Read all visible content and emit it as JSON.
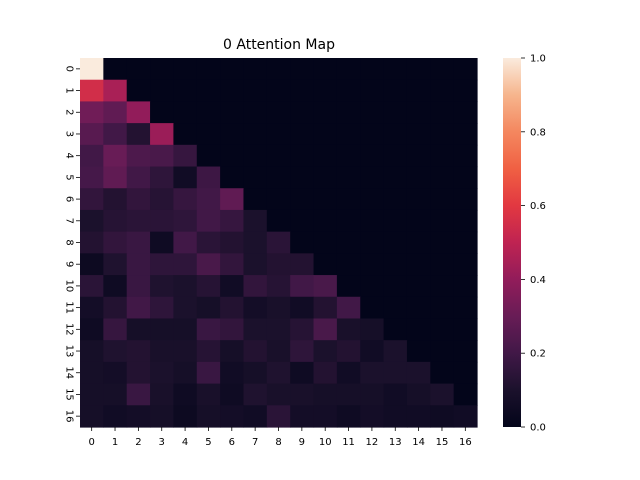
{
  "chart_data": {
    "type": "heatmap",
    "title": "0 Attention Map",
    "xlabel": "",
    "ylabel": "",
    "x_tick_labels": [
      "0",
      "1",
      "2",
      "3",
      "4",
      "5",
      "6",
      "7",
      "8",
      "9",
      "10",
      "11",
      "12",
      "13",
      "14",
      "15",
      "16"
    ],
    "y_tick_labels": [
      "0",
      "1",
      "2",
      "3",
      "4",
      "5",
      "6",
      "7",
      "8",
      "9",
      "10",
      "11",
      "12",
      "13",
      "14",
      "15",
      "16"
    ],
    "colorbar": {
      "min": 0.0,
      "max": 1.0,
      "ticks": [
        "0.0",
        "0.2",
        "0.4",
        "0.6",
        "0.8",
        "1.0"
      ]
    },
    "colormap": "rocket",
    "values": [
      [
        1.0,
        0,
        0,
        0,
        0,
        0,
        0,
        0,
        0,
        0,
        0,
        0,
        0,
        0,
        0,
        0,
        0
      ],
      [
        0.55,
        0.45,
        0,
        0,
        0,
        0,
        0,
        0,
        0,
        0,
        0,
        0,
        0,
        0,
        0,
        0,
        0
      ],
      [
        0.32,
        0.28,
        0.4,
        0,
        0,
        0,
        0,
        0,
        0,
        0,
        0,
        0,
        0,
        0,
        0,
        0,
        0
      ],
      [
        0.26,
        0.2,
        0.12,
        0.42,
        0,
        0,
        0,
        0,
        0,
        0,
        0,
        0,
        0,
        0,
        0,
        0,
        0
      ],
      [
        0.2,
        0.3,
        0.23,
        0.22,
        0.17,
        0,
        0,
        0,
        0,
        0,
        0,
        0,
        0,
        0,
        0,
        0,
        0
      ],
      [
        0.21,
        0.28,
        0.2,
        0.15,
        0.06,
        0.19,
        0,
        0,
        0,
        0,
        0,
        0,
        0,
        0,
        0,
        0,
        0
      ],
      [
        0.16,
        0.12,
        0.16,
        0.13,
        0.17,
        0.2,
        0.28,
        0,
        0,
        0,
        0,
        0,
        0,
        0,
        0,
        0,
        0
      ],
      [
        0.1,
        0.13,
        0.14,
        0.14,
        0.15,
        0.2,
        0.17,
        0.1,
        0,
        0,
        0,
        0,
        0,
        0,
        0,
        0,
        0
      ],
      [
        0.12,
        0.16,
        0.18,
        0.05,
        0.2,
        0.14,
        0.12,
        0.1,
        0.14,
        0,
        0,
        0,
        0,
        0,
        0,
        0,
        0
      ],
      [
        0.04,
        0.11,
        0.18,
        0.15,
        0.15,
        0.22,
        0.16,
        0.1,
        0.12,
        0.12,
        0,
        0,
        0,
        0,
        0,
        0,
        0
      ],
      [
        0.14,
        0.05,
        0.18,
        0.11,
        0.1,
        0.13,
        0.06,
        0.16,
        0.13,
        0.2,
        0.22,
        0,
        0,
        0,
        0,
        0,
        0
      ],
      [
        0.07,
        0.12,
        0.2,
        0.15,
        0.1,
        0.08,
        0.12,
        0.07,
        0.09,
        0.06,
        0.12,
        0.2,
        0,
        0,
        0,
        0,
        0
      ],
      [
        0.05,
        0.17,
        0.08,
        0.08,
        0.08,
        0.18,
        0.16,
        0.1,
        0.1,
        0.13,
        0.22,
        0.09,
        0.08,
        0,
        0,
        0,
        0
      ],
      [
        0.08,
        0.11,
        0.12,
        0.09,
        0.09,
        0.13,
        0.08,
        0.12,
        0.09,
        0.15,
        0.1,
        0.12,
        0.06,
        0.1,
        0,
        0,
        0
      ],
      [
        0.08,
        0.07,
        0.12,
        0.1,
        0.08,
        0.18,
        0.06,
        0.08,
        0.11,
        0.05,
        0.12,
        0.06,
        0.1,
        0.1,
        0.1,
        0,
        0
      ],
      [
        0.08,
        0.08,
        0.18,
        0.09,
        0.05,
        0.09,
        0.05,
        0.11,
        0.09,
        0.09,
        0.08,
        0.08,
        0.08,
        0.06,
        0.08,
        0.1,
        0
      ],
      [
        0.08,
        0.06,
        0.07,
        0.08,
        0.04,
        0.08,
        0.07,
        0.06,
        0.14,
        0.07,
        0.07,
        0.05,
        0.07,
        0.06,
        0.06,
        0.05,
        0.06
      ]
    ]
  }
}
